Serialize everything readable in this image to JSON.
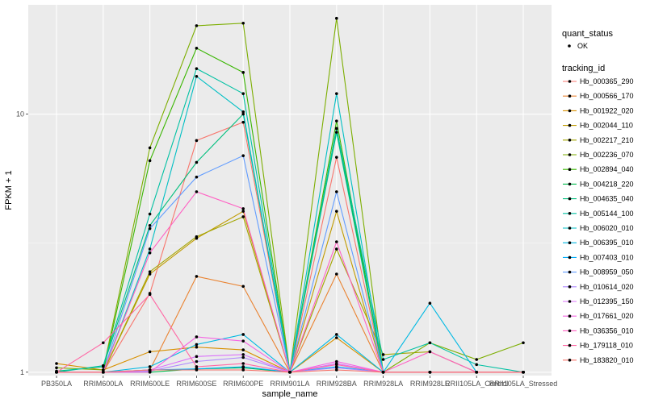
{
  "chart_data": {
    "type": "line",
    "xlabel": "sample_name",
    "ylabel": "FPKM + 1",
    "y_scale": "log10",
    "ylim": [
      0.97,
      26.5
    ],
    "y_ticks": [
      {
        "value": 1,
        "label": "1"
      },
      {
        "value": 10,
        "label": "10"
      }
    ],
    "categories": [
      "PB350LA",
      "RRIM600LA",
      "RRIM600LE",
      "RRIM600SE",
      "RRIM600PE",
      "RRIM901LA",
      "RRIM928BA",
      "RRIM928LA",
      "RRIM928LE",
      "RRII105LA_Control",
      "RRII105LA_Stressed"
    ],
    "legend": {
      "shape_title": "quant_status",
      "shape_entries": [
        "OK"
      ],
      "color_title": "tracking_id"
    },
    "series": [
      {
        "name": "Hb_000365_290",
        "color": "#F8766D",
        "values": [
          1,
          1,
          2.02,
          7.9,
          9.3,
          1,
          6.8,
          1,
          1,
          1,
          1
        ]
      },
      {
        "name": "Hb_000566_170",
        "color": "#EA8331",
        "values": [
          1,
          1,
          1.02,
          2.35,
          2.15,
          1,
          2.4,
          1,
          1,
          1,
          1
        ]
      },
      {
        "name": "Hb_001922_020",
        "color": "#D89000",
        "values": [
          1.08,
          1.02,
          1.2,
          1.25,
          1.22,
          1,
          1.36,
          1,
          1,
          1,
          1
        ]
      },
      {
        "name": "Hb_002044_110",
        "color": "#C09B00",
        "values": [
          1,
          1,
          2.4,
          3.3,
          4.2,
          1,
          4.2,
          1,
          1,
          1,
          1
        ]
      },
      {
        "name": "Hb_002217_210",
        "color": "#A3A500",
        "values": [
          1,
          1,
          2.45,
          3.35,
          4.0,
          1,
          3.0,
          1.17,
          1.2,
          1,
          1
        ]
      },
      {
        "name": "Hb_002236_070",
        "color": "#7CAE00",
        "values": [
          1.04,
          1.02,
          7.4,
          22.0,
          22.5,
          1,
          23.5,
          1,
          1.3,
          1.12,
          1.3
        ]
      },
      {
        "name": "Hb_002894_040",
        "color": "#39B600",
        "values": [
          1,
          1,
          6.6,
          18.0,
          14.5,
          1,
          9.4,
          1,
          1,
          1,
          1
        ]
      },
      {
        "name": "Hb_004218_220",
        "color": "#00BB4E",
        "values": [
          1,
          1,
          1,
          1.03,
          1.04,
          1,
          8.8,
          1,
          1,
          1,
          1
        ]
      },
      {
        "name": "Hb_004635_040",
        "color": "#00BF7D",
        "values": [
          1.01,
          1.05,
          3.7,
          6.5,
          10.0,
          1,
          8.5,
          1,
          1,
          1,
          1
        ]
      },
      {
        "name": "Hb_005144_100",
        "color": "#00C1A3",
        "values": [
          1,
          1.06,
          4.1,
          15.0,
          12.0,
          1,
          8.8,
          1.12,
          1.3,
          1.07,
          1
        ]
      },
      {
        "name": "Hb_006020_010",
        "color": "#00BFC4",
        "values": [
          1,
          1,
          3.0,
          14.0,
          10.2,
          1,
          12.0,
          1,
          1,
          1,
          1
        ]
      },
      {
        "name": "Hb_006395_010",
        "color": "#00B9E3",
        "values": [
          1,
          1,
          1.05,
          1.28,
          1.4,
          1,
          1.4,
          1,
          1.85,
          1,
          1
        ]
      },
      {
        "name": "Hb_007403_010",
        "color": "#00ADFA",
        "values": [
          1,
          1,
          1.02,
          1.03,
          1.05,
          1,
          1.05,
          1,
          1,
          1,
          1
        ]
      },
      {
        "name": "Hb_008959_050",
        "color": "#619CFF",
        "values": [
          1,
          1,
          3.6,
          5.7,
          6.9,
          1,
          5.0,
          1,
          1,
          1,
          1
        ]
      },
      {
        "name": "Hb_010614_020",
        "color": "#AE87FF",
        "values": [
          1,
          1,
          1.01,
          1.1,
          1.14,
          1,
          1.04,
          1,
          1,
          1,
          1
        ]
      },
      {
        "name": "Hb_012395_150",
        "color": "#DB72FB",
        "values": [
          1,
          1,
          1.02,
          1.15,
          1.17,
          1,
          1.08,
          1,
          1,
          1,
          1
        ]
      },
      {
        "name": "Hb_017661_020",
        "color": "#F564E3",
        "values": [
          1,
          1,
          1,
          1.37,
          1.32,
          1,
          1.1,
          1,
          1,
          1,
          1
        ]
      },
      {
        "name": "Hb_036356_010",
        "color": "#FF61C3",
        "values": [
          1,
          1,
          2.9,
          5.0,
          4.3,
          1,
          3.2,
          1,
          1.2,
          1,
          1
        ]
      },
      {
        "name": "Hb_179118_010",
        "color": "#FF67A4",
        "values": [
          1,
          1.3,
          2.0,
          1.05,
          1.08,
          1,
          1.07,
          1,
          1,
          1,
          1
        ]
      },
      {
        "name": "Hb_183820_010",
        "color": "#F8766D",
        "values": [
          1,
          1,
          1.02,
          1.02,
          1.02,
          1,
          1.02,
          1,
          1,
          1,
          1
        ]
      }
    ]
  }
}
